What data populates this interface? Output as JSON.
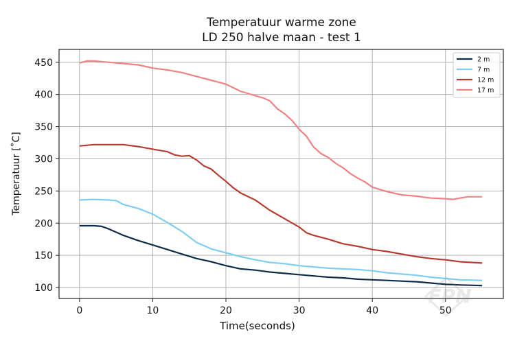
{
  "chart_data": {
    "type": "line",
    "title": [
      "Temperatuur warme zone",
      "LD 250 halve maan - test 1"
    ],
    "xlabel": "Time(seconds)",
    "ylabel": "Temperatuur [$^\\circ$C]",
    "ylabel_display": "Temperatuur [˚C]",
    "xlim": [
      -2.8,
      57.9
    ],
    "ylim": [
      83,
      470
    ],
    "xticks": [
      0,
      10,
      20,
      30,
      40,
      50
    ],
    "yticks": [
      100,
      150,
      200,
      250,
      300,
      350,
      400,
      450
    ],
    "grid": true,
    "legend_position": "top-right",
    "series": [
      {
        "name": "2 m",
        "color": "#0c2c4a",
        "x": [
          0,
          2,
          3,
          4,
          6,
          8,
          10,
          12,
          14,
          16,
          18,
          20,
          22,
          24,
          26,
          28,
          30,
          32,
          34,
          36,
          38,
          40,
          42,
          44,
          46,
          48,
          50,
          52,
          55
        ],
        "y": [
          196,
          196,
          195,
          191,
          181,
          173,
          166,
          159,
          152,
          145,
          140,
          134,
          129,
          127,
          124,
          122,
          120,
          118,
          116,
          115,
          113,
          112,
          111,
          110,
          109,
          107,
          105,
          104,
          103
        ]
      },
      {
        "name": "7 m",
        "color": "#7ecdf3",
        "x": [
          0,
          2,
          4,
          5,
          6,
          8,
          10,
          12,
          14,
          16,
          18,
          20,
          22,
          24,
          26,
          28,
          30,
          32,
          34,
          36,
          38,
          40,
          42,
          44,
          46,
          48,
          50,
          52,
          55
        ],
        "y": [
          236,
          237,
          236,
          235,
          229,
          223,
          214,
          201,
          187,
          170,
          160,
          154,
          148,
          143,
          139,
          137,
          134,
          132,
          130,
          129,
          128,
          126,
          123,
          121,
          119,
          116,
          114,
          112,
          111
        ]
      },
      {
        "name": "12 m",
        "color": "#b93a2f",
        "x": [
          0,
          2,
          4,
          6,
          8,
          10,
          12,
          13,
          14,
          15,
          16,
          17,
          18,
          19,
          20,
          21,
          22,
          24,
          26,
          28,
          30,
          31,
          32,
          34,
          36,
          38,
          40,
          42,
          44,
          46,
          48,
          50,
          52,
          55
        ],
        "y": [
          320,
          322,
          322,
          322,
          319,
          315,
          311,
          306,
          304,
          305,
          298,
          289,
          284,
          274,
          265,
          255,
          247,
          236,
          220,
          207,
          194,
          185,
          181,
          175,
          168,
          164,
          159,
          156,
          152,
          148,
          145,
          143,
          140,
          138
        ]
      },
      {
        "name": "17 m",
        "color": "#f08282",
        "x": [
          0,
          1,
          2,
          4,
          6,
          8,
          10,
          12,
          14,
          16,
          18,
          20,
          22,
          24,
          25,
          26,
          27,
          28,
          29,
          30,
          31,
          32,
          33,
          34,
          35,
          36,
          37,
          38,
          39,
          40,
          42,
          44,
          46,
          48,
          50,
          51,
          52,
          53,
          55
        ],
        "y": [
          449,
          452,
          452,
          450,
          448,
          446,
          441,
          438,
          434,
          428,
          422,
          416,
          405,
          398,
          395,
          390,
          378,
          370,
          360,
          346,
          335,
          318,
          308,
          302,
          293,
          286,
          277,
          270,
          264,
          256,
          249,
          244,
          242,
          239,
          238,
          237,
          239,
          241,
          241
        ]
      }
    ]
  },
  "watermark": {
    "logo_text": "FPN"
  }
}
